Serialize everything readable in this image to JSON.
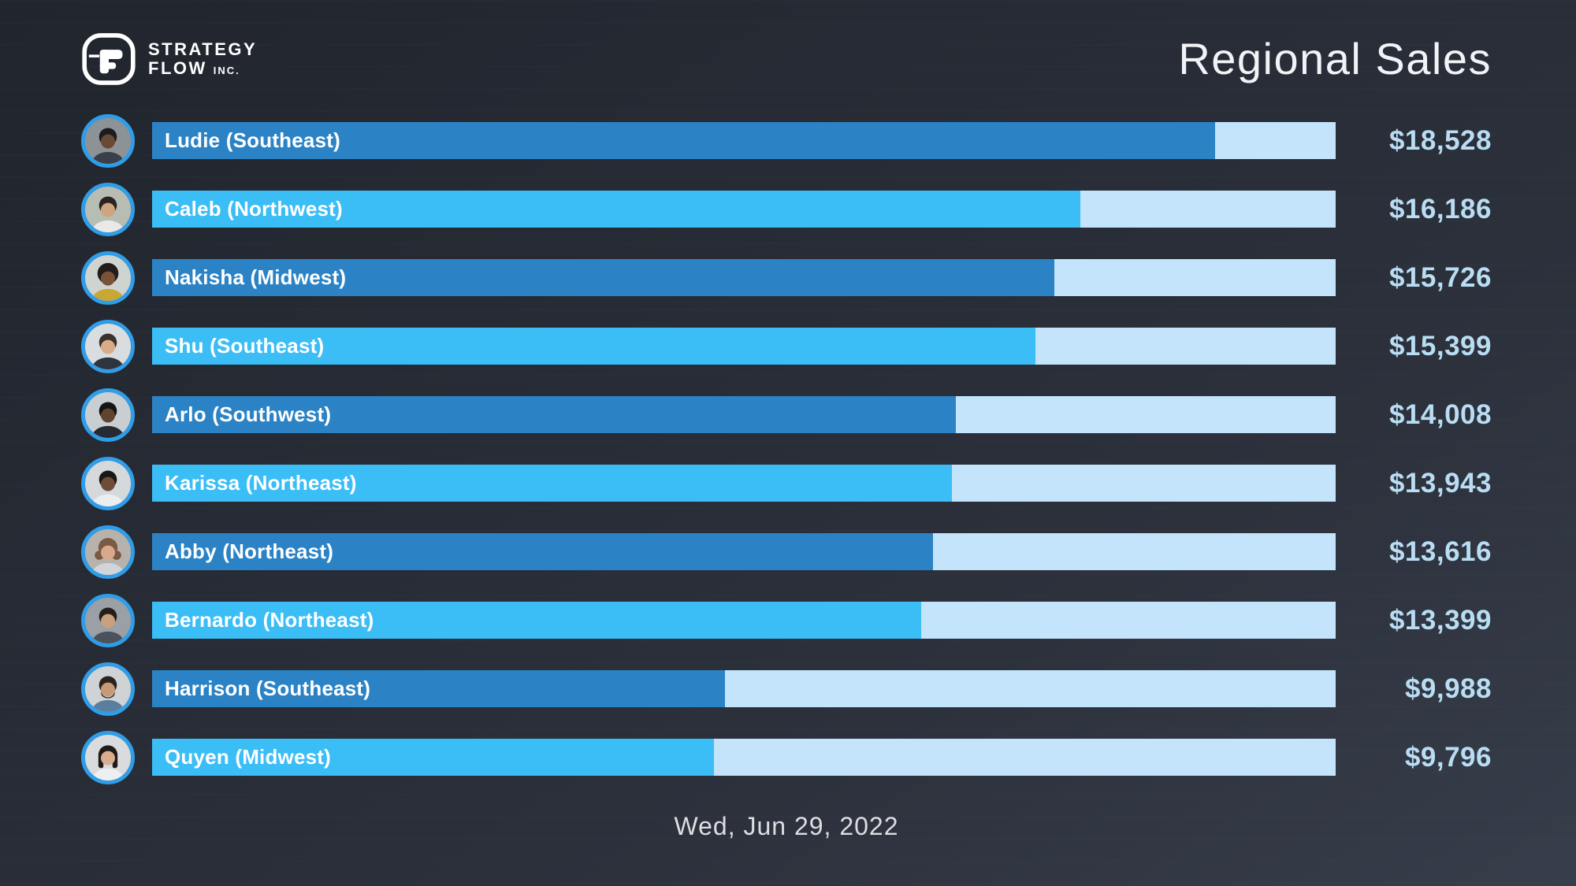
{
  "brand": {
    "line1": "STRATEGY",
    "line2": "FLOW",
    "suffix": "INC."
  },
  "header": {
    "title": "Regional Sales"
  },
  "footer": {
    "date": "Wed, Jun 29, 2022"
  },
  "chart_data": {
    "type": "bar",
    "orientation": "horizontal",
    "title": "Regional Sales",
    "date_label": "Wed, Jun 29, 2022",
    "unit": "USD",
    "axis_max": 20630,
    "legend": "none",
    "grid": false,
    "colors": {
      "fill_dark": "#2b83c5",
      "fill_bright": "#3bbdf6",
      "track": "#c3e4fa",
      "value_text": "#b9ddf3",
      "avatar_ring": "#2f9de8"
    },
    "bars": [
      {
        "name": "Ludie",
        "region": "Southeast",
        "label": "Ludie (Southeast)",
        "value": 18528,
        "value_label": "$18,528",
        "fill": "#2b83c5",
        "avatar": {
          "bg": "#8d9297",
          "skin": "#6b4a35",
          "hair": "#1c1c1e",
          "shirt": "#394049",
          "hairstyle": "short"
        }
      },
      {
        "name": "Caleb",
        "region": "Northwest",
        "label": "Caleb (Northwest)",
        "value": 16186,
        "value_label": "$16,186",
        "fill": "#3bbdf6",
        "avatar": {
          "bg": "#b7bdb2",
          "skin": "#cfa57f",
          "hair": "#2a2420",
          "shirt": "#e9e9e7",
          "hairstyle": "short"
        }
      },
      {
        "name": "Nakisha",
        "region": "Midwest",
        "label": "Nakisha (Midwest)",
        "value": 15726,
        "value_label": "$15,726",
        "fill": "#2b83c5",
        "avatar": {
          "bg": "#d0d4d0",
          "skin": "#7a5238",
          "hair": "#221d1c",
          "shirt": "#c9a733",
          "hairstyle": "afro"
        }
      },
      {
        "name": "Shu",
        "region": "Southeast",
        "label": "Shu (Southeast)",
        "value": 15399,
        "value_label": "$15,399",
        "fill": "#3bbdf6",
        "avatar": {
          "bg": "#dadddf",
          "skin": "#d9ab89",
          "hair": "#3a332d",
          "shirt": "#2e343f",
          "hairstyle": "short"
        }
      },
      {
        "name": "Arlo",
        "region": "Southwest",
        "label": "Arlo (Southwest)",
        "value": 14008,
        "value_label": "$14,008",
        "fill": "#2b83c5",
        "avatar": {
          "bg": "#c9ced3",
          "skin": "#5f4430",
          "hair": "#141414",
          "shirt": "#252a33",
          "hairstyle": "short"
        }
      },
      {
        "name": "Karissa",
        "region": "Northeast",
        "label": "Karissa (Northeast)",
        "value": 13943,
        "value_label": "$13,943",
        "fill": "#3bbdf6",
        "avatar": {
          "bg": "#d5d9db",
          "skin": "#6e4c36",
          "hair": "#1a1815",
          "shirt": "#eaeef1",
          "hairstyle": "short"
        }
      },
      {
        "name": "Abby",
        "region": "Northeast",
        "label": "Abby (Northeast)",
        "value": 13616,
        "value_label": "$13,616",
        "fill": "#2b83c5",
        "avatar": {
          "bg": "#b8b2ac",
          "skin": "#d8a98c",
          "hair": "#7a5a43",
          "shirt": "#d0d5d9",
          "hairstyle": "curly"
        }
      },
      {
        "name": "Bernardo",
        "region": "Northeast",
        "label": "Bernardo (Northeast)",
        "value": 13399,
        "value_label": "$13,399",
        "fill": "#3bbdf6",
        "avatar": {
          "bg": "#9aa0a6",
          "skin": "#c9a07e",
          "hair": "#251f1b",
          "shirt": "#4a525c",
          "hairstyle": "short"
        }
      },
      {
        "name": "Harrison",
        "region": "Southeast",
        "label": "Harrison (Southeast)",
        "value": 9988,
        "value_label": "$9,988",
        "fill": "#2b83c5",
        "avatar": {
          "bg": "#d0d3d5",
          "skin": "#c89b78",
          "hair": "#2b241e",
          "shirt": "#5a7f9e",
          "hairstyle": "short",
          "beard": true
        }
      },
      {
        "name": "Quyen",
        "region": "Midwest",
        "label": "Quyen (Midwest)",
        "value": 9796,
        "value_label": "$9,796",
        "fill": "#3bbdf6",
        "avatar": {
          "bg": "#d9dbdd",
          "skin": "#d9ae8e",
          "hair": "#201b19",
          "shirt": "#edeff1",
          "hairstyle": "bob"
        }
      }
    ]
  }
}
